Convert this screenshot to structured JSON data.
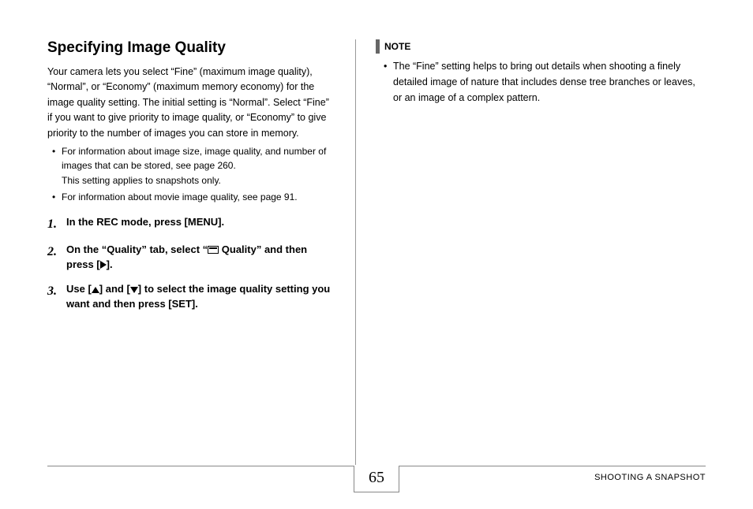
{
  "heading": "Specifying Image Quality",
  "intro": "Your camera lets you select “Fine” (maximum image quality), “Normal”, or “Economy” (maximum memory economy) for the image quality setting. The initial setting is “Normal”. Select “Fine” if you want to give priority to image quality, or “Economy” to give priority to the number of images you can store in memory.",
  "bullets": [
    {
      "text": "For information about image size, image quality, and number of images that can be stored, see page 260.",
      "sub": "This setting applies to snapshots only."
    },
    {
      "text": "For information about movie image quality, see page 91."
    }
  ],
  "steps": [
    {
      "num": "1.",
      "text": "In the REC mode, press [MENU]."
    },
    {
      "num": "2.",
      "pre": "On the “Quality” tab, select “",
      "post": " Quality” and then press [",
      "end": "]."
    },
    {
      "num": "3.",
      "pre": "Use [",
      "mid": "] and [",
      "post": "] to select the image quality setting you want and then press [SET]."
    }
  ],
  "note_label": "NOTE",
  "note_items": [
    "The “Fine” setting helps to bring out details when shooting a finely detailed image of nature that includes dense tree branches or leaves, or an image of a complex pattern."
  ],
  "page_number": "65",
  "section_title": "SHOOTING A SNAPSHOT"
}
